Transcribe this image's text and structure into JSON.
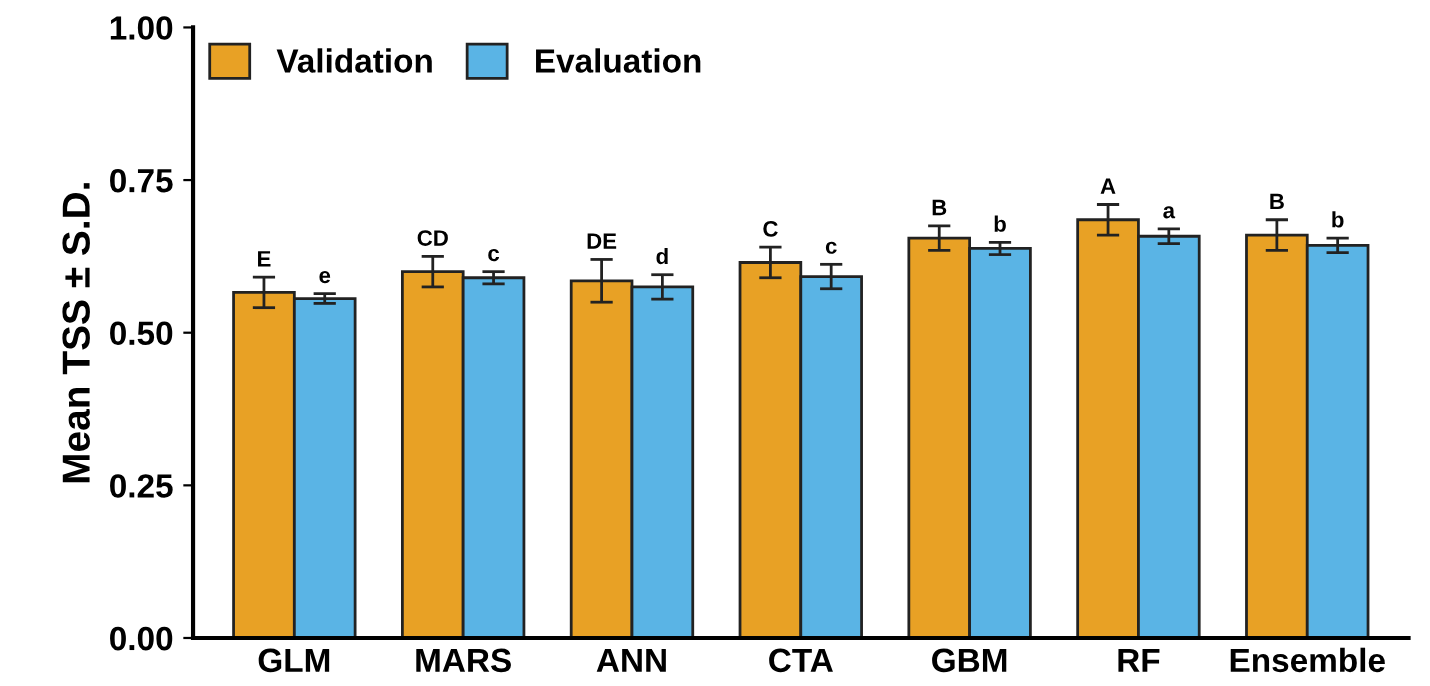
{
  "chart_data": {
    "type": "bar",
    "ylabel": "Mean TSS ± S.D.",
    "categories": [
      "GLM",
      "MARS",
      "ANN",
      "CTA",
      "GBM",
      "RF",
      "Ensemble"
    ],
    "series": [
      {
        "name": "Validation",
        "color": "#e8a125",
        "values": [
          0.566,
          0.6,
          0.585,
          0.615,
          0.655,
          0.685,
          0.66
        ],
        "errors": [
          0.025,
          0.025,
          0.035,
          0.025,
          0.02,
          0.025,
          0.025
        ],
        "value_labels": [
          "E",
          "CD",
          "DE",
          "C",
          "B",
          "A",
          "B"
        ]
      },
      {
        "name": "Evaluation",
        "color": "#5ab4e5",
        "values": [
          0.556,
          0.59,
          0.575,
          0.592,
          0.638,
          0.658,
          0.643
        ],
        "errors": [
          0.008,
          0.01,
          0.02,
          0.02,
          0.01,
          0.012,
          0.012
        ],
        "value_labels": [
          "e",
          "c",
          "d",
          "c",
          "b",
          "a",
          "b"
        ]
      }
    ],
    "ylim": [
      0,
      1
    ],
    "yticks": [
      {
        "value": 0,
        "label": "0.00"
      },
      {
        "value": 0.25,
        "label": "0.25"
      },
      {
        "value": 0.5,
        "label": "0.50"
      },
      {
        "value": 0.75,
        "label": "0.75"
      },
      {
        "value": 1,
        "label": "1.00"
      }
    ],
    "grid": false,
    "legend": "top left"
  }
}
